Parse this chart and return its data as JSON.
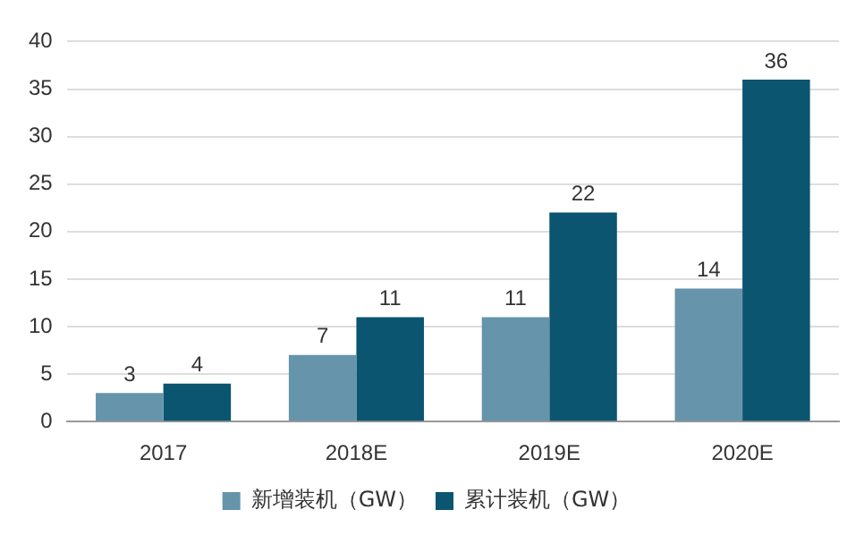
{
  "chart_data": {
    "type": "bar",
    "categories": [
      "2017",
      "2018E",
      "2019E",
      "2020E"
    ],
    "series": [
      {
        "name": "新增装机（GW）",
        "color": "#6694aa",
        "values": [
          3,
          7,
          11,
          14
        ]
      },
      {
        "name": "累计装机（GW）",
        "color": "#0b5570",
        "values": [
          4,
          11,
          22,
          36
        ]
      }
    ],
    "ylim": [
      0,
      40
    ],
    "yticks": [
      0,
      5,
      10,
      15,
      20,
      25,
      30,
      35,
      40
    ],
    "grid": "y",
    "legend": "bottom",
    "data_labels": true
  }
}
